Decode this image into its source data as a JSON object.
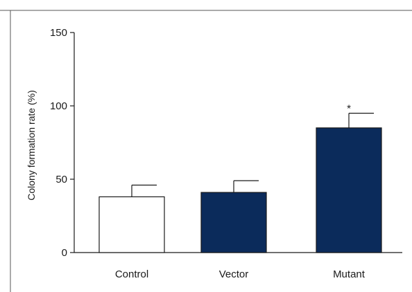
{
  "chart_data": {
    "type": "bar",
    "title": "",
    "xlabel": "",
    "ylabel": "Colony formation rate (%)",
    "ylim": [
      0,
      150
    ],
    "yticks": [
      0,
      50,
      100,
      150
    ],
    "categories": [
      "Control",
      "Vector",
      "Mutant"
    ],
    "values": [
      38,
      41,
      85
    ],
    "errors": [
      8,
      8,
      10
    ],
    "bar_colors": [
      "#ffffff",
      "#0b2b5b",
      "#0b2b5b"
    ],
    "annotations": [
      {
        "category": "Mutant",
        "text": "*"
      }
    ],
    "grid": false,
    "legend": "none"
  }
}
